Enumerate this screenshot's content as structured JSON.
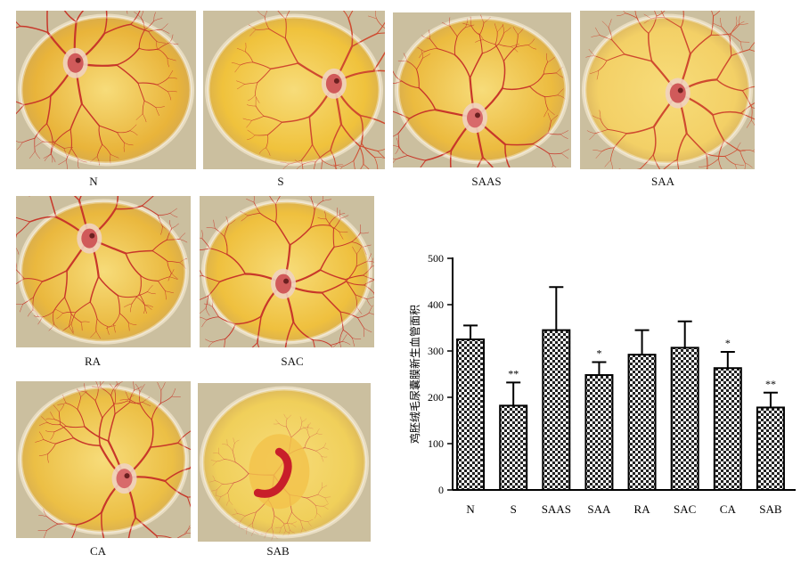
{
  "panels": [
    {
      "label": "N",
      "yolk": "#e9b43a",
      "vessel": "#c8372a",
      "embryo": "#d05a5a"
    },
    {
      "label": "S",
      "yolk": "#f0c23c",
      "vessel": "#cf4a2f",
      "embryo": "#d05a5a"
    },
    {
      "label": "SAAS",
      "yolk": "#ecbb3f",
      "vessel": "#c8372a",
      "embryo": "#d86a6a"
    },
    {
      "label": "SAA",
      "yolk": "#f3d066",
      "vessel": "#cf4a2f",
      "embryo": "#d05a5a"
    },
    {
      "label": "RA",
      "yolk": "#eab83e",
      "vessel": "#c8372a",
      "embryo": "#d05a5a"
    },
    {
      "label": "SAC",
      "yolk": "#efc03e",
      "vessel": "#c8372a",
      "embryo": "#d05a5a"
    },
    {
      "label": "CA",
      "yolk": "#ecbf45",
      "vessel": "#c8372a",
      "embryo": "#d86a6a"
    },
    {
      "label": "SAB",
      "yolk": "#f0cf5a",
      "vessel": "#d4604a",
      "embryo": "#c81e2a"
    }
  ],
  "chart_data": {
    "type": "bar",
    "categories": [
      "N",
      "S",
      "SAAS",
      "SAA",
      "RA",
      "SAC",
      "CA",
      "SAB"
    ],
    "values": [
      325,
      182,
      345,
      248,
      292,
      307,
      263,
      178
    ],
    "errors": [
      30,
      50,
      93,
      28,
      53,
      57,
      35,
      32
    ],
    "significance": [
      "",
      "**",
      "",
      "*",
      "",
      "",
      "*",
      "**"
    ],
    "ylabel": "鸡胚绒毛尿囊膜新生血管面积",
    "ylim": [
      0,
      500
    ],
    "yticks": [
      0,
      100,
      200,
      300,
      400,
      500
    ],
    "bar_fill": "checkerboard"
  }
}
